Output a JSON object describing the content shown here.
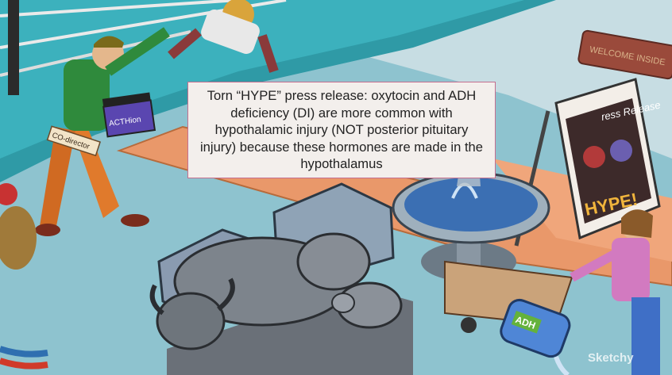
{
  "callout": {
    "text": "Torn “HYPE” press release: oxytocin and ADH deficiency (DI) are more common with hypothalamic injury (NOT posterior pituitary injury) because these hormones are made in the hypothalamus"
  },
  "signs": {
    "clapper": "ACTHion",
    "director_tag": "CO-director",
    "poster_title": "ress Release",
    "poster_hype": "HYPE!",
    "jug_label": "ADH",
    "doormat": "WELCOME INSIDE",
    "watermark": "Sketchy"
  },
  "colors": {
    "callout_border": "#c46f8f",
    "floor": "#8ec3cf",
    "ring_skirt": "#2f9aa6",
    "walkway": "#e9986a"
  }
}
